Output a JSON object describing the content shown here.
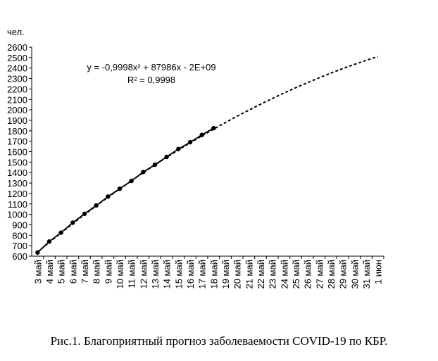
{
  "chart_data": {
    "type": "line",
    "y_label": "чел.",
    "annotations": [
      "y = -0,9998x² + 87986x - 2E+09",
      "R² = 0,9998"
    ],
    "caption": "Рис.1. Благоприятный прогноз заболеваемости COVID-19 по КБР.",
    "categories": [
      "3 май",
      "4 май",
      "5 май",
      "6 май",
      "7 май",
      "8 май",
      "9 май",
      "10 май",
      "11 май",
      "12 май",
      "13 май",
      "14 май",
      "15 май",
      "16 май",
      "17 май",
      "18 май",
      "19 май",
      "20 май",
      "21 май",
      "22 май",
      "23 май",
      "24 май",
      "25 май",
      "26 май",
      "27 май",
      "28 май",
      "29 май",
      "30 май",
      "31 май",
      "1 июн"
    ],
    "series": [
      {
        "color": "#000000",
        "line_style": "dashed",
        "marker": "none",
        "values": [
          640,
          732,
          822,
          911,
          998,
          1081,
          1164,
          1244,
          1322,
          1399,
          1473,
          1546,
          1616,
          1684,
          1751,
          1816,
          1878,
          1939,
          1997,
          2054,
          2108,
          2161,
          2212,
          2260,
          2307,
          2352,
          2395,
          2435,
          2474,
          2510
        ]
      },
      {
        "color": "#000000",
        "line_style": "solid",
        "marker": "circle",
        "values": [
          635,
          740,
          825,
          920,
          1005,
          1085,
          1170,
          1245,
          1320,
          1405,
          1475,
          1550,
          1625,
          1690,
          1760,
          1825,
          null,
          null,
          null,
          null,
          null,
          null,
          null,
          null,
          null,
          null,
          null,
          null,
          null,
          null
        ]
      }
    ],
    "ylim": [
      600,
      2600
    ],
    "yticks": [
      600,
      700,
      800,
      900,
      1000,
      1100,
      1200,
      1300,
      1400,
      1500,
      1600,
      1700,
      1800,
      1900,
      2000,
      2100,
      2200,
      2300,
      2400,
      2500,
      2600
    ],
    "grid": false
  }
}
